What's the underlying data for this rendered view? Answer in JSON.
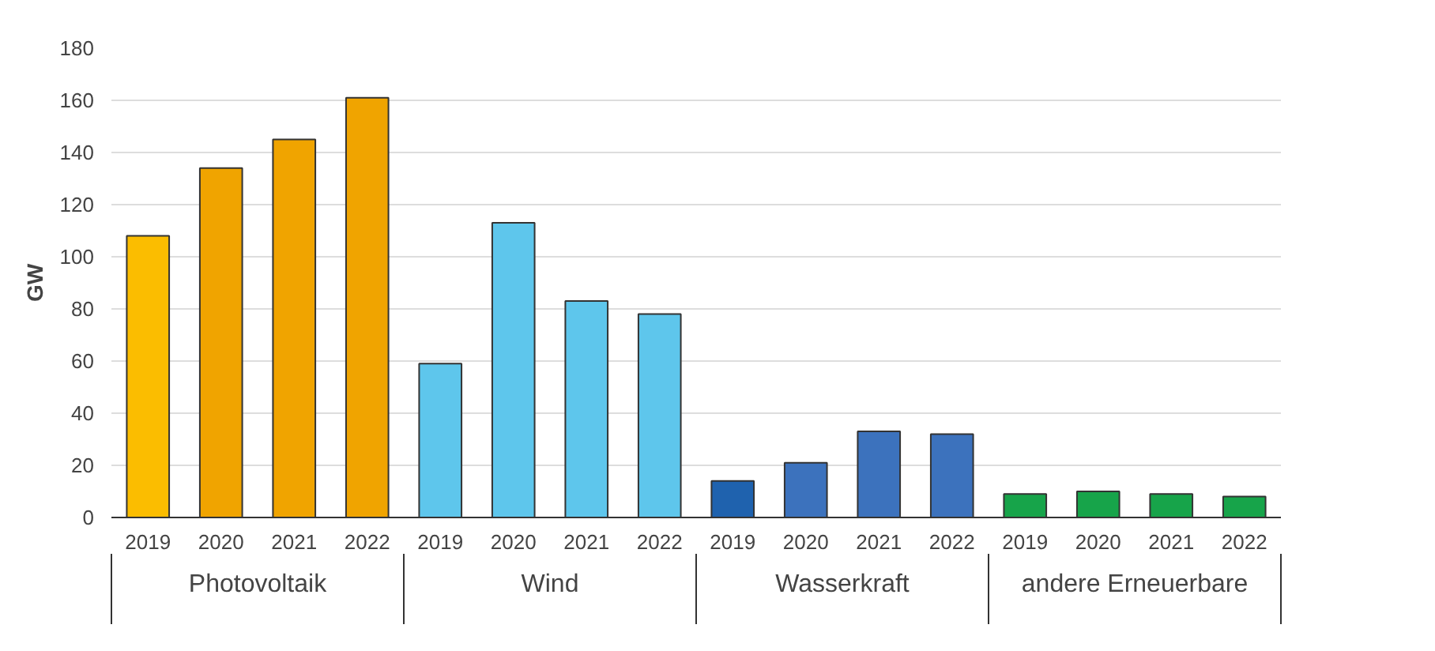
{
  "chart_data": {
    "type": "bar",
    "ylabel": "GW",
    "categories": [
      "2019",
      "2020",
      "2021",
      "2022",
      "2019",
      "2020",
      "2021",
      "2022",
      "2019",
      "2020",
      "2021",
      "2022",
      "2019",
      "2020",
      "2021",
      "2022"
    ],
    "series": [
      {
        "name": "Photovoltaik",
        "colors": [
          "#fbbd00",
          "#f0a400",
          "#f0a400",
          "#f0a400",
          null,
          null,
          null,
          null,
          null,
          null,
          null,
          null,
          null,
          null,
          null,
          null
        ],
        "values": [
          108,
          134,
          145,
          161,
          null,
          null,
          null,
          null,
          null,
          null,
          null,
          null,
          null,
          null,
          null,
          null
        ]
      },
      {
        "name": "Wind",
        "colors": [
          null,
          null,
          null,
          null,
          "#5ec6ec",
          "#5ec6ec",
          "#5ec6ec",
          "#5ec6ec",
          null,
          null,
          null,
          null,
          null,
          null,
          null,
          null
        ],
        "values": [
          null,
          null,
          null,
          null,
          59,
          113,
          83,
          78,
          null,
          null,
          null,
          null,
          null,
          null,
          null,
          null
        ]
      },
      {
        "name": "Wasserkraft",
        "colors": [
          null,
          null,
          null,
          null,
          null,
          null,
          null,
          null,
          "#1f62ae",
          "#3c72bd",
          "#3c72bd",
          "#3c72bd",
          null,
          null,
          null,
          null
        ],
        "values": [
          null,
          null,
          null,
          null,
          null,
          null,
          null,
          null,
          14,
          21,
          33,
          32,
          null,
          null,
          null,
          null
        ]
      },
      {
        "name": "andere Erneuerbare",
        "colors": [
          null,
          null,
          null,
          null,
          null,
          null,
          null,
          null,
          null,
          null,
          null,
          null,
          "#17a44a",
          "#17a44a",
          "#17a44a",
          "#17a44a"
        ],
        "values": [
          null,
          null,
          null,
          null,
          null,
          null,
          null,
          null,
          null,
          null,
          null,
          null,
          9,
          10,
          9,
          8
        ]
      }
    ],
    "ylim": [
      0,
      180
    ],
    "yticks": [
      0,
      20,
      40,
      60,
      80,
      100,
      120,
      140,
      160,
      180
    ],
    "grid": "y"
  }
}
